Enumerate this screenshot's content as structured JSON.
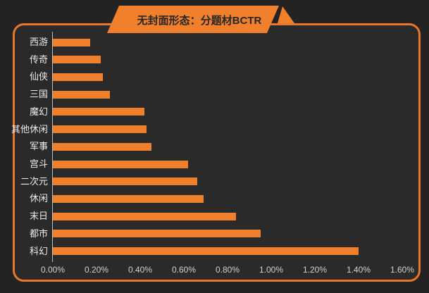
{
  "banner": {
    "title": "无封面形态：分题材BCTR",
    "background_color": "#F0802B",
    "text_color": "#262626"
  },
  "panel": {
    "border_color": "#E8772B",
    "background_color": "#2A2A2A",
    "outer_background_color": "#232323"
  },
  "chart_data": {
    "type": "bar",
    "orientation": "horizontal",
    "title": "无封面形态：分题材BCTR",
    "categories": [
      "西游",
      "传奇",
      "仙侠",
      "三国",
      "魔幻",
      "其他休闲",
      "军事",
      "宫斗",
      "二次元",
      "休闲",
      "末日",
      "都市",
      "科幻"
    ],
    "values": [
      0.17,
      0.22,
      0.23,
      0.26,
      0.42,
      0.43,
      0.45,
      0.62,
      0.66,
      0.69,
      0.84,
      0.95,
      1.4
    ],
    "value_unit": "%",
    "xlabel": "",
    "ylabel": "",
    "xlim": [
      0,
      1.6
    ],
    "x_ticks": [
      "0.00%",
      "0.20%",
      "0.40%",
      "0.60%",
      "0.80%",
      "1.00%",
      "1.20%",
      "1.40%",
      "1.60%"
    ],
    "grid": false,
    "legend": false,
    "bar_color": "#F0802B",
    "axis_line_color": "#BFBFBF",
    "category_label_color": "#EDEDED",
    "tick_label_color": "#D2D2D2"
  }
}
